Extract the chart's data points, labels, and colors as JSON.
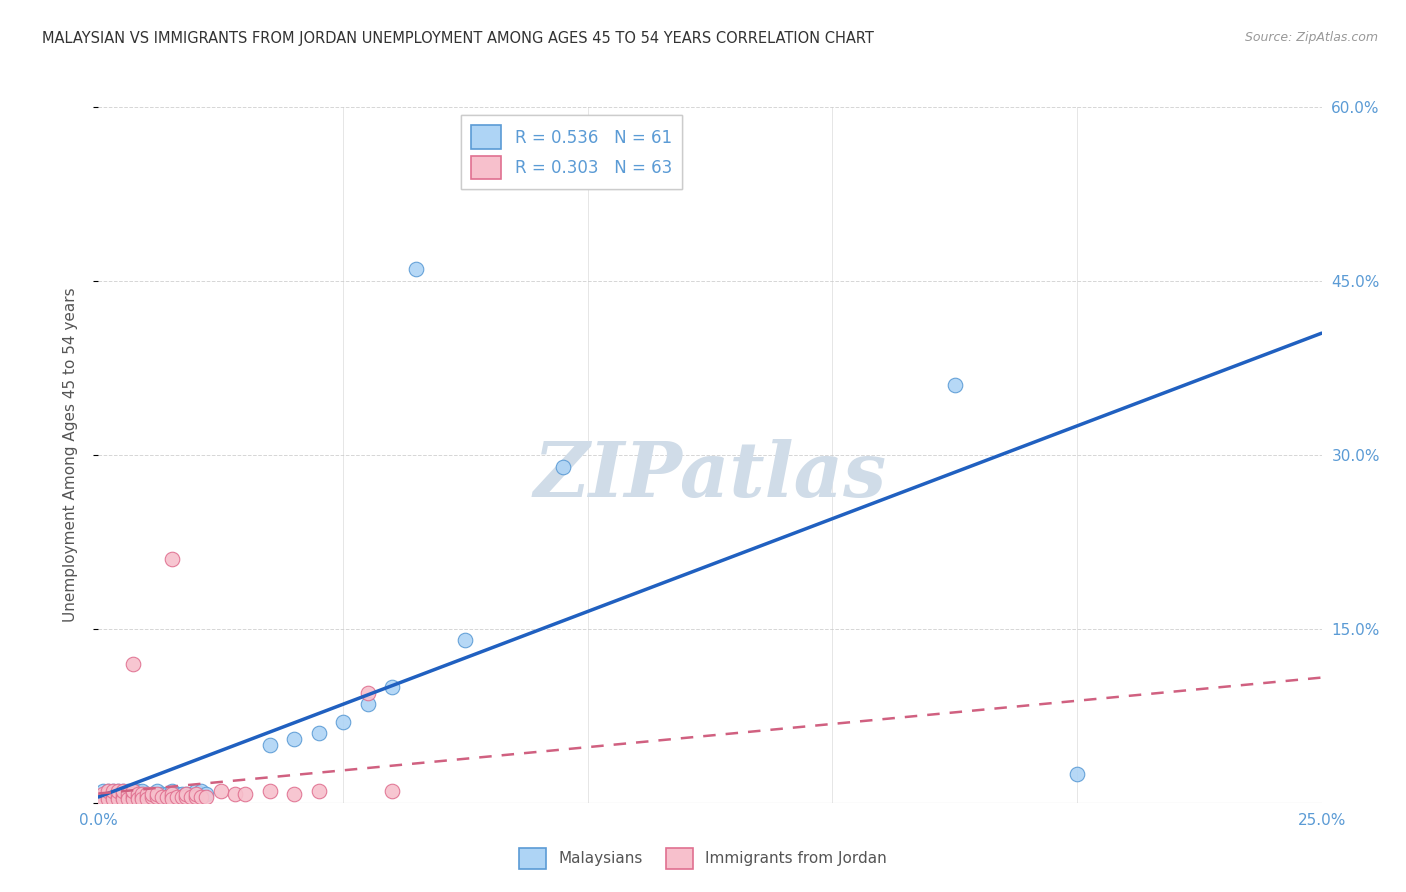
{
  "title": "MALAYSIAN VS IMMIGRANTS FROM JORDAN UNEMPLOYMENT AMONG AGES 45 TO 54 YEARS CORRELATION CHART",
  "source": "Source: ZipAtlas.com",
  "ylabel": "Unemployment Among Ages 45 to 54 years",
  "xlim": [
    0.0,
    0.25
  ],
  "ylim": [
    0.0,
    0.6
  ],
  "malaysians_color": "#aed4f5",
  "malaysians_edge": "#5b9bd5",
  "jordan_color": "#f7c0cc",
  "jordan_edge": "#e07090",
  "line_blue": "#2060c0",
  "line_pink": "#d06080",
  "watermark": "ZIPatlas",
  "watermark_color": "#d0dce8",
  "background_color": "#ffffff",
  "tick_color": "#5b9bd5",
  "grid_color": "#cccccc",
  "title_color": "#333333",
  "source_color": "#999999",
  "ylabel_color": "#555555",
  "legend_edge": "#cccccc",
  "bottom_legend_color": "#555555",
  "malaysians_x": [
    0.001,
    0.001,
    0.002,
    0.002,
    0.002,
    0.002,
    0.003,
    0.003,
    0.003,
    0.003,
    0.004,
    0.004,
    0.004,
    0.004,
    0.005,
    0.005,
    0.005,
    0.005,
    0.006,
    0.006,
    0.006,
    0.006,
    0.007,
    0.007,
    0.007,
    0.008,
    0.008,
    0.008,
    0.009,
    0.009,
    0.009,
    0.01,
    0.01,
    0.011,
    0.011,
    0.012,
    0.012,
    0.013,
    0.013,
    0.014,
    0.014,
    0.015,
    0.015,
    0.016,
    0.017,
    0.018,
    0.019,
    0.02,
    0.021,
    0.022,
    0.035,
    0.04,
    0.045,
    0.05,
    0.055,
    0.06,
    0.065,
    0.075,
    0.095,
    0.175,
    0.2
  ],
  "malaysians_y": [
    0.005,
    0.01,
    0.005,
    0.008,
    0.01,
    0.003,
    0.005,
    0.008,
    0.01,
    0.003,
    0.005,
    0.008,
    0.01,
    0.003,
    0.005,
    0.008,
    0.01,
    0.003,
    0.005,
    0.008,
    0.01,
    0.003,
    0.005,
    0.008,
    0.01,
    0.005,
    0.008,
    0.01,
    0.005,
    0.008,
    0.01,
    0.005,
    0.008,
    0.005,
    0.008,
    0.005,
    0.01,
    0.005,
    0.008,
    0.005,
    0.008,
    0.005,
    0.01,
    0.008,
    0.008,
    0.008,
    0.008,
    0.01,
    0.01,
    0.008,
    0.05,
    0.055,
    0.06,
    0.07,
    0.085,
    0.1,
    0.46,
    0.14,
    0.29,
    0.36,
    0.025
  ],
  "jordan_x": [
    0.001,
    0.001,
    0.001,
    0.002,
    0.002,
    0.002,
    0.002,
    0.003,
    0.003,
    0.003,
    0.003,
    0.004,
    0.004,
    0.004,
    0.004,
    0.005,
    0.005,
    0.005,
    0.005,
    0.006,
    0.006,
    0.006,
    0.007,
    0.007,
    0.007,
    0.007,
    0.008,
    0.008,
    0.008,
    0.009,
    0.009,
    0.009,
    0.01,
    0.01,
    0.01,
    0.011,
    0.011,
    0.012,
    0.012,
    0.013,
    0.014,
    0.015,
    0.015,
    0.015,
    0.016,
    0.017,
    0.018,
    0.018,
    0.019,
    0.02,
    0.02,
    0.021,
    0.022,
    0.025,
    0.028,
    0.03,
    0.035,
    0.04,
    0.045,
    0.055,
    0.06,
    0.015,
    0.007
  ],
  "jordan_y": [
    0.005,
    0.008,
    0.003,
    0.005,
    0.008,
    0.003,
    0.01,
    0.005,
    0.008,
    0.003,
    0.01,
    0.005,
    0.008,
    0.003,
    0.01,
    0.005,
    0.008,
    0.003,
    0.01,
    0.005,
    0.008,
    0.003,
    0.005,
    0.008,
    0.003,
    0.01,
    0.005,
    0.008,
    0.003,
    0.005,
    0.008,
    0.003,
    0.005,
    0.008,
    0.003,
    0.005,
    0.008,
    0.005,
    0.008,
    0.005,
    0.005,
    0.005,
    0.008,
    0.003,
    0.005,
    0.005,
    0.005,
    0.008,
    0.005,
    0.005,
    0.008,
    0.005,
    0.005,
    0.01,
    0.008,
    0.008,
    0.01,
    0.008,
    0.01,
    0.095,
    0.01,
    0.21,
    0.12
  ],
  "blue_line_x": [
    0.0,
    0.25
  ],
  "blue_line_y": [
    0.005,
    0.405
  ],
  "pink_line_x": [
    0.0,
    0.25
  ],
  "pink_line_y": [
    0.008,
    0.108
  ]
}
